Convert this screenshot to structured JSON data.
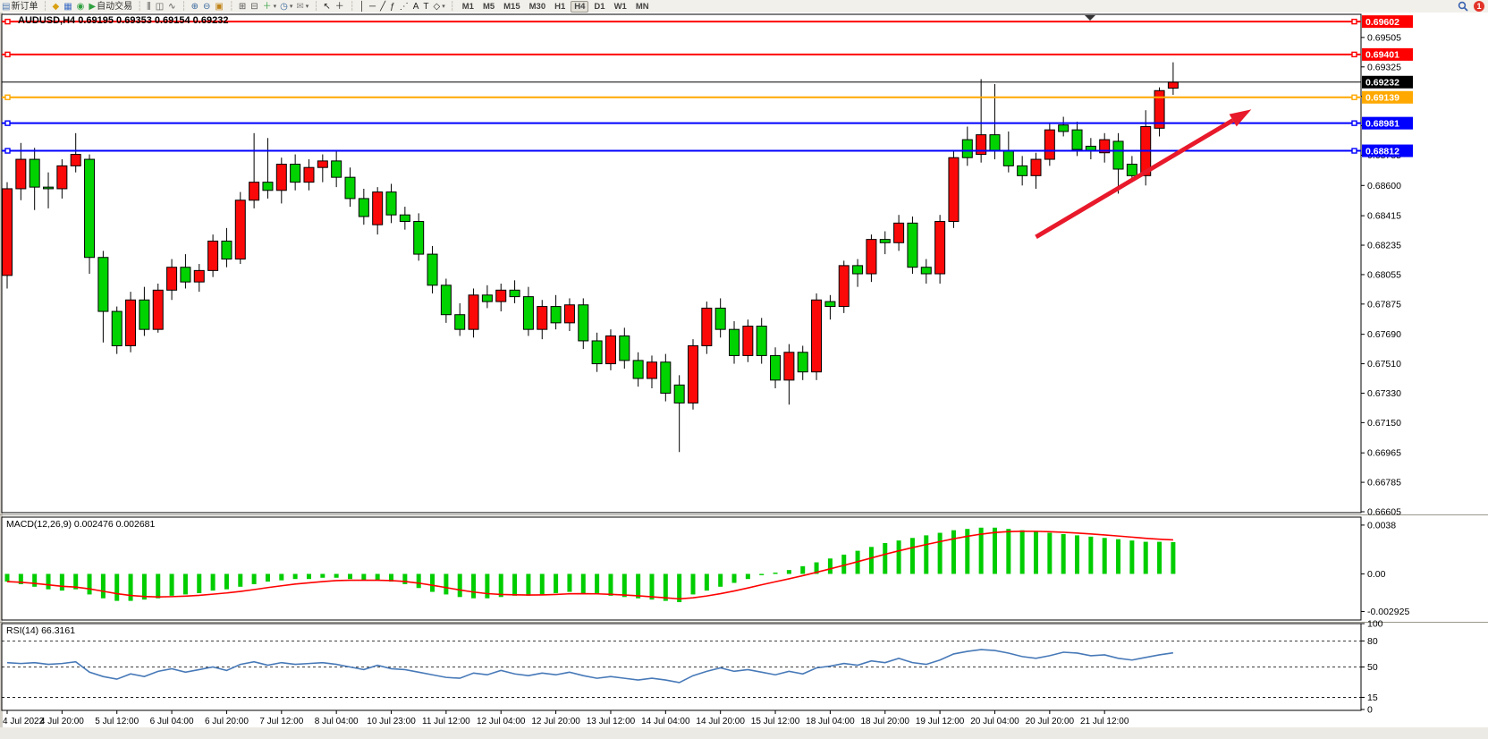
{
  "toolbar": {
    "new_order_label": "新订单",
    "autotrading_label": "自动交易",
    "notification_count": "1",
    "items": [
      {
        "id": "new-order-icon",
        "glyph": "▤",
        "color": "#4f7ab3",
        "label_key": "new_order_label"
      },
      {
        "id": "separator",
        "glyph": "┆",
        "color": "#b9b6ae"
      },
      {
        "id": "market-watch-icon",
        "glyph": "◆",
        "color": "#d8a013"
      },
      {
        "id": "data-window-icon",
        "glyph": "▦",
        "color": "#3c6cc3"
      },
      {
        "id": "navigator-icon",
        "glyph": "◉",
        "color": "#2fa040"
      },
      {
        "id": "autotrading-icon",
        "glyph": "▶",
        "color": "#2fa040",
        "label_key": "autotrading_label"
      },
      {
        "id": "separator",
        "glyph": "┆",
        "color": "#b9b6ae"
      },
      {
        "id": "bar-chart-icon",
        "glyph": "⫼",
        "color": "#555555"
      },
      {
        "id": "candle-chart-icon",
        "glyph": "◫",
        "color": "#555555"
      },
      {
        "id": "line-chart-icon",
        "glyph": "∿",
        "color": "#555555"
      },
      {
        "id": "separator",
        "glyph": "┆",
        "color": "#b9b6ae"
      },
      {
        "id": "zoom-in-icon",
        "glyph": "⊕",
        "color": "#39699f"
      },
      {
        "id": "zoom-out-icon",
        "glyph": "⊖",
        "color": "#39699f"
      },
      {
        "id": "tile-windows-icon",
        "glyph": "▣",
        "color": "#c08418"
      },
      {
        "id": "separator",
        "glyph": "┆",
        "color": "#b9b6ae"
      },
      {
        "id": "arrange-windows-icon",
        "glyph": "⊞",
        "color": "#555555"
      },
      {
        "id": "cascade-windows-icon",
        "glyph": "⊟",
        "color": "#555555"
      },
      {
        "id": "indicators-icon",
        "glyph": "＋",
        "color": "#2fa040",
        "caret": true
      },
      {
        "id": "periods-icon",
        "glyph": "◷",
        "color": "#39699f",
        "caret": true
      },
      {
        "id": "templates-icon",
        "glyph": "✉",
        "color": "#8a8a8a",
        "caret": true
      },
      {
        "id": "separator",
        "glyph": "┆",
        "color": "#b9b6ae"
      },
      {
        "id": "cursor-icon",
        "glyph": "↖",
        "color": "#222222"
      },
      {
        "id": "crosshair-icon",
        "glyph": "＋",
        "color": "#222222"
      },
      {
        "id": "separator",
        "glyph": "┆",
        "color": "#b9b6ae"
      },
      {
        "id": "vertical-line-icon",
        "glyph": "│",
        "color": "#222222"
      },
      {
        "id": "horizontal-line-icon",
        "glyph": "─",
        "color": "#222222"
      },
      {
        "id": "trendline-icon",
        "glyph": "╱",
        "color": "#222222"
      },
      {
        "id": "fibonacci-icon",
        "glyph": "ƒ",
        "color": "#222222"
      },
      {
        "id": "fibo-fan-icon",
        "glyph": "⋰",
        "color": "#222222"
      },
      {
        "id": "text-icon",
        "glyph": "A",
        "color": "#222222"
      },
      {
        "id": "label-icon",
        "glyph": "T",
        "color": "#222222"
      },
      {
        "id": "shapes-icon",
        "glyph": "◇",
        "color": "#222222",
        "caret": true
      },
      {
        "id": "separator",
        "glyph": "┆",
        "color": "#b9b6ae"
      }
    ],
    "timeframes": [
      "M1",
      "M5",
      "M15",
      "M30",
      "H1",
      "H4",
      "D1",
      "W1",
      "MN"
    ],
    "active_timeframe": "H4"
  },
  "chart": {
    "title_text": "AUDUSD,H4  0.69195 0.69353 0.69154 0.69232",
    "symbol": "AUDUSD",
    "timeframe": "H4",
    "ohlc": {
      "open": "0.69195",
      "high": "0.69353",
      "low": "0.69154",
      "close": "0.69232"
    }
  },
  "indicators": {
    "macd_label": "MACD(12,26,9) 0.002476 0.002681",
    "rsi_label": "RSI(14) 66.3161"
  },
  "price_axis": {
    "ticks": [
      "0.69505",
      "0.69325",
      "0.69145",
      "0.68965",
      "0.68785",
      "0.68600",
      "0.68415",
      "0.68235",
      "0.68055",
      "0.67875",
      "0.67690",
      "0.67510",
      "0.67330",
      "0.67150",
      "0.66965",
      "0.66785",
      "0.66605"
    ],
    "badges": [
      {
        "text": "0.69602",
        "price": 0.69602,
        "color": "#fe0000",
        "text_color": "#ffffff"
      },
      {
        "text": "0.69401",
        "price": 0.69401,
        "color": "#fe0000",
        "text_color": "#ffffff"
      },
      {
        "text": "0.69232",
        "price": 0.69232,
        "color": "#000000",
        "text_color": "#ffffff"
      },
      {
        "text": "0.69139",
        "price": 0.69139,
        "color": "#ffa800",
        "text_color": "#ffffff"
      },
      {
        "text": "0.68981",
        "price": 0.68981,
        "color": "#0000fe",
        "text_color": "#ffffff"
      },
      {
        "text": "0.68812",
        "price": 0.68812,
        "color": "#0000fe",
        "text_color": "#ffffff"
      }
    ]
  },
  "macd_axis": {
    "labels": [
      {
        "text": "0.0038",
        "value": 0.0038
      },
      {
        "text": "0.00",
        "value": 0.0
      },
      {
        "text": "-0.002925",
        "value": -0.002925
      }
    ]
  },
  "rsi_axis": {
    "labels": [
      {
        "text": "100",
        "value": 100
      },
      {
        "text": "80",
        "value": 80
      },
      {
        "text": "50",
        "value": 50
      },
      {
        "text": "15",
        "value": 15
      },
      {
        "text": "0",
        "value": 0
      }
    ],
    "dashed_levels": [
      80,
      50,
      15
    ]
  },
  "x_axis": {
    "labels": [
      "4 Jul 2022",
      "4 Jul 20:00",
      "5 Jul 12:00",
      "6 Jul 04:00",
      "6 Jul 20:00",
      "7 Jul 12:00",
      "8 Jul 04:00",
      "10 Jul 23:00",
      "11 Jul 12:00",
      "12 Jul 04:00",
      "12 Jul 20:00",
      "13 Jul 12:00",
      "14 Jul 04:00",
      "14 Jul 20:00",
      "15 Jul 12:00",
      "18 Jul 04:00",
      "18 Jul 20:00",
      "19 Jul 12:00",
      "20 Jul 04:00",
      "20 Jul 20:00",
      "21 Jul 12:00"
    ],
    "bars_per_label": 4
  },
  "colors": {
    "up_candle": "#fb0909",
    "down_candle": "#00d300",
    "candle_border": "#000000",
    "resistance_line": "#fe0000",
    "support_line": "#0000fe",
    "pivot_line": "#ffa800",
    "current_price_line": "#000000",
    "macd_histogram": "#00cd00",
    "macd_signal": "#fe0000",
    "rsi_line": "#4779b8",
    "trend_arrow": "#e8192b"
  },
  "chart_data": {
    "type": "candlestick",
    "symbol": "AUDUSD",
    "timeframe": "H4",
    "ylim": [
      0.66605,
      0.69641
    ],
    "candles": [
      [
        0.6805,
        0.6862,
        0.6797,
        0.6858
      ],
      [
        0.6858,
        0.6886,
        0.6851,
        0.6876
      ],
      [
        0.6876,
        0.6883,
        0.6845,
        0.6859
      ],
      [
        0.6859,
        0.6868,
        0.6846,
        0.6858
      ],
      [
        0.6858,
        0.6876,
        0.6852,
        0.6872
      ],
      [
        0.6872,
        0.6892,
        0.6868,
        0.6879
      ],
      [
        0.6876,
        0.6879,
        0.6806,
        0.6816
      ],
      [
        0.6816,
        0.682,
        0.6764,
        0.6783
      ],
      [
        0.6783,
        0.6786,
        0.6757,
        0.6762
      ],
      [
        0.6762,
        0.6795,
        0.6758,
        0.679
      ],
      [
        0.679,
        0.6798,
        0.6768,
        0.6772
      ],
      [
        0.6772,
        0.68,
        0.677,
        0.6796
      ],
      [
        0.6796,
        0.6815,
        0.679,
        0.681
      ],
      [
        0.681,
        0.6818,
        0.6797,
        0.6801
      ],
      [
        0.6801,
        0.6812,
        0.6795,
        0.6808
      ],
      [
        0.6808,
        0.683,
        0.6804,
        0.6826
      ],
      [
        0.6826,
        0.6834,
        0.681,
        0.6815
      ],
      [
        0.6815,
        0.6856,
        0.6812,
        0.6851
      ],
      [
        0.6851,
        0.6892,
        0.6846,
        0.6862
      ],
      [
        0.6862,
        0.6889,
        0.6852,
        0.6857
      ],
      [
        0.6857,
        0.6877,
        0.6849,
        0.6873
      ],
      [
        0.6873,
        0.6879,
        0.6857,
        0.6862
      ],
      [
        0.6862,
        0.6876,
        0.6857,
        0.6871
      ],
      [
        0.6871,
        0.6879,
        0.6862,
        0.6875
      ],
      [
        0.6875,
        0.6881,
        0.6859,
        0.6865
      ],
      [
        0.6865,
        0.6871,
        0.6847,
        0.6852
      ],
      [
        0.6852,
        0.6858,
        0.6836,
        0.6841
      ],
      [
        0.6836,
        0.6859,
        0.683,
        0.6856
      ],
      [
        0.6856,
        0.6861,
        0.6837,
        0.6842
      ],
      [
        0.6842,
        0.6847,
        0.6833,
        0.6838
      ],
      [
        0.6838,
        0.6843,
        0.6814,
        0.6818
      ],
      [
        0.6818,
        0.6823,
        0.6794,
        0.6799
      ],
      [
        0.6799,
        0.6803,
        0.6776,
        0.6781
      ],
      [
        0.6781,
        0.6788,
        0.6768,
        0.6772
      ],
      [
        0.6772,
        0.6797,
        0.6767,
        0.6793
      ],
      [
        0.6793,
        0.6799,
        0.6785,
        0.6789
      ],
      [
        0.6789,
        0.68,
        0.6783,
        0.6796
      ],
      [
        0.6796,
        0.6802,
        0.6788,
        0.6792
      ],
      [
        0.6792,
        0.6798,
        0.6768,
        0.6772
      ],
      [
        0.6772,
        0.679,
        0.6766,
        0.6786
      ],
      [
        0.6786,
        0.6793,
        0.6772,
        0.6776
      ],
      [
        0.6776,
        0.6791,
        0.6771,
        0.6787
      ],
      [
        0.6787,
        0.6791,
        0.676,
        0.6765
      ],
      [
        0.6765,
        0.677,
        0.6746,
        0.6751
      ],
      [
        0.6751,
        0.6772,
        0.6747,
        0.6768
      ],
      [
        0.6768,
        0.6773,
        0.6748,
        0.6753
      ],
      [
        0.6753,
        0.6758,
        0.6737,
        0.6742
      ],
      [
        0.6742,
        0.6756,
        0.6736,
        0.6752
      ],
      [
        0.6752,
        0.6757,
        0.6728,
        0.6733
      ],
      [
        0.6738,
        0.6744,
        0.6697,
        0.6727
      ],
      [
        0.6727,
        0.6766,
        0.6723,
        0.6762
      ],
      [
        0.6762,
        0.6789,
        0.6757,
        0.6785
      ],
      [
        0.6785,
        0.6791,
        0.6767,
        0.6772
      ],
      [
        0.6772,
        0.6777,
        0.6751,
        0.6756
      ],
      [
        0.6756,
        0.6778,
        0.6752,
        0.6774
      ],
      [
        0.6774,
        0.6779,
        0.6751,
        0.6756
      ],
      [
        0.6756,
        0.6761,
        0.6736,
        0.6741
      ],
      [
        0.6741,
        0.6763,
        0.6726,
        0.6758
      ],
      [
        0.6758,
        0.6762,
        0.6741,
        0.6746
      ],
      [
        0.6746,
        0.6794,
        0.6741,
        0.679
      ],
      [
        0.6789,
        0.6793,
        0.6778,
        0.6786
      ],
      [
        0.6786,
        0.6814,
        0.6782,
        0.6811
      ],
      [
        0.6811,
        0.6815,
        0.6798,
        0.6806
      ],
      [
        0.6806,
        0.683,
        0.6801,
        0.6827
      ],
      [
        0.6827,
        0.6832,
        0.6818,
        0.6825
      ],
      [
        0.6825,
        0.6842,
        0.682,
        0.6837
      ],
      [
        0.6837,
        0.6841,
        0.6806,
        0.681
      ],
      [
        0.681,
        0.6815,
        0.68,
        0.6806
      ],
      [
        0.6806,
        0.6842,
        0.68,
        0.6838
      ],
      [
        0.6838,
        0.6881,
        0.6834,
        0.6877
      ],
      [
        0.6888,
        0.6896,
        0.6872,
        0.6877
      ],
      [
        0.6879,
        0.6925,
        0.6874,
        0.6891
      ],
      [
        0.6891,
        0.6922,
        0.6876,
        0.6881
      ],
      [
        0.6881,
        0.6893,
        0.6868,
        0.6872
      ],
      [
        0.6872,
        0.6878,
        0.686,
        0.6866
      ],
      [
        0.6866,
        0.688,
        0.6858,
        0.6876
      ],
      [
        0.6876,
        0.6898,
        0.6872,
        0.6894
      ],
      [
        0.6897,
        0.6902,
        0.689,
        0.6893
      ],
      [
        0.6894,
        0.6899,
        0.6878,
        0.6882
      ],
      [
        0.6884,
        0.6889,
        0.6876,
        0.6881
      ],
      [
        0.688,
        0.6892,
        0.6874,
        0.6888
      ],
      [
        0.6887,
        0.6892,
        0.6855,
        0.687
      ],
      [
        0.6873,
        0.6878,
        0.6862,
        0.6866
      ],
      [
        0.6866,
        0.6906,
        0.686,
        0.6896
      ],
      [
        0.6895,
        0.692,
        0.689,
        0.6918
      ],
      [
        0.69195,
        0.69353,
        0.69154,
        0.69232
      ]
    ],
    "hlines": [
      {
        "price": 0.69602,
        "color": "#fe0000",
        "width": 2,
        "role": "resistance"
      },
      {
        "price": 0.69401,
        "color": "#fe0000",
        "width": 2,
        "role": "resistance"
      },
      {
        "price": 0.69139,
        "color": "#ffa800",
        "width": 2,
        "role": "pivot"
      },
      {
        "price": 0.68981,
        "color": "#0000fe",
        "width": 2,
        "role": "support"
      },
      {
        "price": 0.68812,
        "color": "#0000fe",
        "width": 2,
        "role": "support"
      }
    ],
    "current_price": 0.69232,
    "trend_arrow": {
      "from_bar": 75.0,
      "from_price": 0.68285,
      "to_bar": 90.7,
      "to_price": 0.69065
    },
    "macd": {
      "params": "12,26,9",
      "main_last": 0.002476,
      "signal_last": 0.002681,
      "ylim": [
        -0.00359,
        0.00442
      ],
      "histogram": [
        -0.0006,
        -0.0008,
        -0.001,
        -0.0012,
        -0.0013,
        -0.0012,
        -0.0016,
        -0.0019,
        -0.0021,
        -0.0021,
        -0.002,
        -0.0019,
        -0.0017,
        -0.0016,
        -0.0015,
        -0.0013,
        -0.0012,
        -0.001,
        -0.0008,
        -0.0006,
        -0.0005,
        -0.0004,
        -0.0004,
        -0.0003,
        -0.0003,
        -0.0004,
        -0.0005,
        -0.0005,
        -0.0006,
        -0.0008,
        -0.0011,
        -0.0014,
        -0.0016,
        -0.0018,
        -0.0019,
        -0.0019,
        -0.0018,
        -0.0017,
        -0.0017,
        -0.0016,
        -0.0015,
        -0.0014,
        -0.0015,
        -0.0016,
        -0.0017,
        -0.0018,
        -0.0019,
        -0.002,
        -0.0021,
        -0.0022,
        -0.0016,
        -0.0013,
        -0.001,
        -0.0007,
        -0.0004,
        -0.0001,
        0.0001,
        0.0003,
        0.0006,
        0.0009,
        0.0012,
        0.0015,
        0.0018,
        0.0021,
        0.0024,
        0.0026,
        0.0028,
        0.003,
        0.0032,
        0.0034,
        0.0035,
        0.0036,
        0.0036,
        0.0035,
        0.0034,
        0.0033,
        0.0032,
        0.0031,
        0.003,
        0.0029,
        0.0028,
        0.0027,
        0.0026,
        0.0025,
        0.0025,
        0.002476
      ]
    },
    "rsi": {
      "period": 14,
      "last": 66.3161,
      "ylim": [
        0,
        100
      ],
      "values": [
        55,
        54,
        55,
        53,
        54,
        56,
        44,
        39,
        36,
        42,
        39,
        45,
        48,
        44,
        47,
        50,
        46,
        53,
        56,
        52,
        55,
        53,
        54,
        55,
        53,
        50,
        47,
        52,
        48,
        47,
        44,
        41,
        38,
        37,
        43,
        41,
        46,
        42,
        40,
        43,
        41,
        44,
        40,
        37,
        39,
        37,
        35,
        37,
        35,
        32,
        40,
        45,
        49,
        45,
        47,
        44,
        41,
        45,
        42,
        49,
        51,
        54,
        52,
        57,
        55,
        60,
        55,
        53,
        58,
        65,
        68,
        70,
        69,
        66,
        62,
        60,
        63,
        67,
        66,
        63,
        64,
        60,
        58,
        61,
        64,
        66.3
      ]
    }
  }
}
